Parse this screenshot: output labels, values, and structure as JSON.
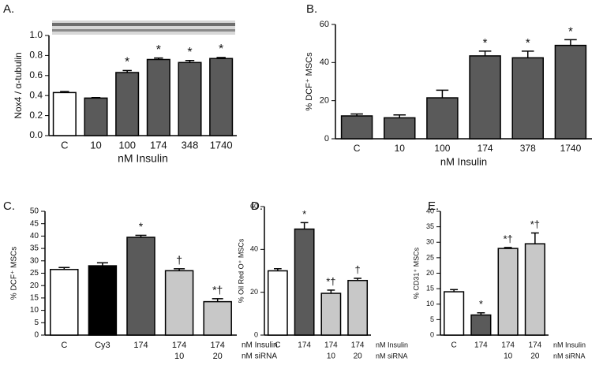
{
  "chart_data": [
    {
      "type": "bar",
      "panel_label": "A.",
      "x_label": "nM Insulin",
      "y_label": "Nox4 / α-tubulin",
      "categories": [
        "C",
        "10",
        "100",
        "174",
        "348",
        "1740"
      ],
      "values": [
        0.43,
        0.375,
        0.63,
        0.76,
        0.73,
        0.77
      ],
      "errors": [
        0.01,
        0.005,
        0.02,
        0.015,
        0.02,
        0.01
      ],
      "annotations": [
        null,
        null,
        "*",
        "*",
        "*",
        "*"
      ],
      "colors": [
        "#ffffff",
        "#5a5a5a",
        "#5a5a5a",
        "#5a5a5a",
        "#5a5a5a",
        "#5a5a5a"
      ],
      "ylim": [
        0,
        1.0
      ],
      "yticks": [
        {
          "value": 0,
          "label": "0.0"
        },
        {
          "value": 0.2,
          "label": "0.2"
        },
        {
          "value": 0.4,
          "label": "0.4"
        },
        {
          "value": 0.6,
          "label": "0.6"
        },
        {
          "value": 0.8,
          "label": "0.8"
        },
        {
          "value": 1.0,
          "label": "1.0"
        }
      ]
    },
    {
      "type": "bar",
      "panel_label": "B.",
      "x_label": "nM Insulin",
      "y_label": "% DCF⁺ MSCs",
      "categories": [
        "C",
        "10",
        "100",
        "174",
        "378",
        "1740"
      ],
      "values": [
        12,
        11,
        21.5,
        43.5,
        42.5,
        49
      ],
      "errors": [
        1,
        1.5,
        4,
        2.5,
        3.5,
        3
      ],
      "annotations": [
        null,
        null,
        null,
        "*",
        "*",
        "*"
      ],
      "colors": [
        "#5a5a5a",
        "#5a5a5a",
        "#5a5a5a",
        "#5a5a5a",
        "#5a5a5a",
        "#5a5a5a"
      ],
      "ylim": [
        0,
        60
      ],
      "yticks": [
        0,
        20,
        40,
        60
      ]
    },
    {
      "type": "bar",
      "panel_label": "C.",
      "y_label": "% DCF⁺ MSCs",
      "categories": [
        "C",
        "Cy3",
        "174",
        "174",
        "174"
      ],
      "sub_categories": [
        null,
        null,
        null,
        "10",
        "20"
      ],
      "row_labels": [
        "nM Insulin",
        "nM siRNA"
      ],
      "values": [
        26.5,
        28,
        39.5,
        26,
        13.5
      ],
      "errors": [
        0.8,
        1.2,
        0.8,
        0.8,
        1.2
      ],
      "annotations": [
        null,
        null,
        "*",
        "†",
        "*†"
      ],
      "colors": [
        "#ffffff",
        "#000000",
        "#5a5a5a",
        "#c8c8c8",
        "#c8c8c8"
      ],
      "ylim": [
        0,
        50
      ],
      "yticks": [
        0,
        5,
        10,
        15,
        20,
        25,
        30,
        35,
        40,
        45,
        50
      ]
    },
    {
      "type": "bar",
      "panel_label": "D.",
      "y_label": "% Oil Red O⁺ MSCs",
      "categories": [
        "C",
        "174",
        "174",
        "174"
      ],
      "sub_categories": [
        null,
        null,
        "10",
        "20"
      ],
      "row_labels": [
        "nM Insulin",
        "nM siRNA"
      ],
      "values": [
        30,
        49.5,
        19.5,
        25.5
      ],
      "errors": [
        1,
        3,
        1.5,
        1
      ],
      "annotations": [
        null,
        "*",
        "*†",
        "†"
      ],
      "colors": [
        "#ffffff",
        "#5a5a5a",
        "#c8c8c8",
        "#c8c8c8"
      ],
      "ylim": [
        0,
        60
      ],
      "yticks": [
        0,
        20,
        40,
        60
      ]
    },
    {
      "type": "bar",
      "panel_label": "E.",
      "y_label": "% CD31⁺ MSCs",
      "categories": [
        "C",
        "174",
        "174",
        "174"
      ],
      "sub_categories": [
        null,
        null,
        "10",
        "20"
      ],
      "row_labels": [
        "nM Insulin",
        "nM siRNA"
      ],
      "values": [
        14,
        6.5,
        28,
        29.5
      ],
      "errors": [
        0.7,
        0.7,
        0.3,
        3.5
      ],
      "annotations": [
        null,
        "*",
        "*†",
        "*†"
      ],
      "colors": [
        "#ffffff",
        "#5a5a5a",
        "#c8c8c8",
        "#c8c8c8"
      ],
      "ylim": [
        0,
        40
      ],
      "yticks": [
        0,
        5,
        10,
        15,
        20,
        25,
        30,
        35,
        40
      ]
    }
  ]
}
